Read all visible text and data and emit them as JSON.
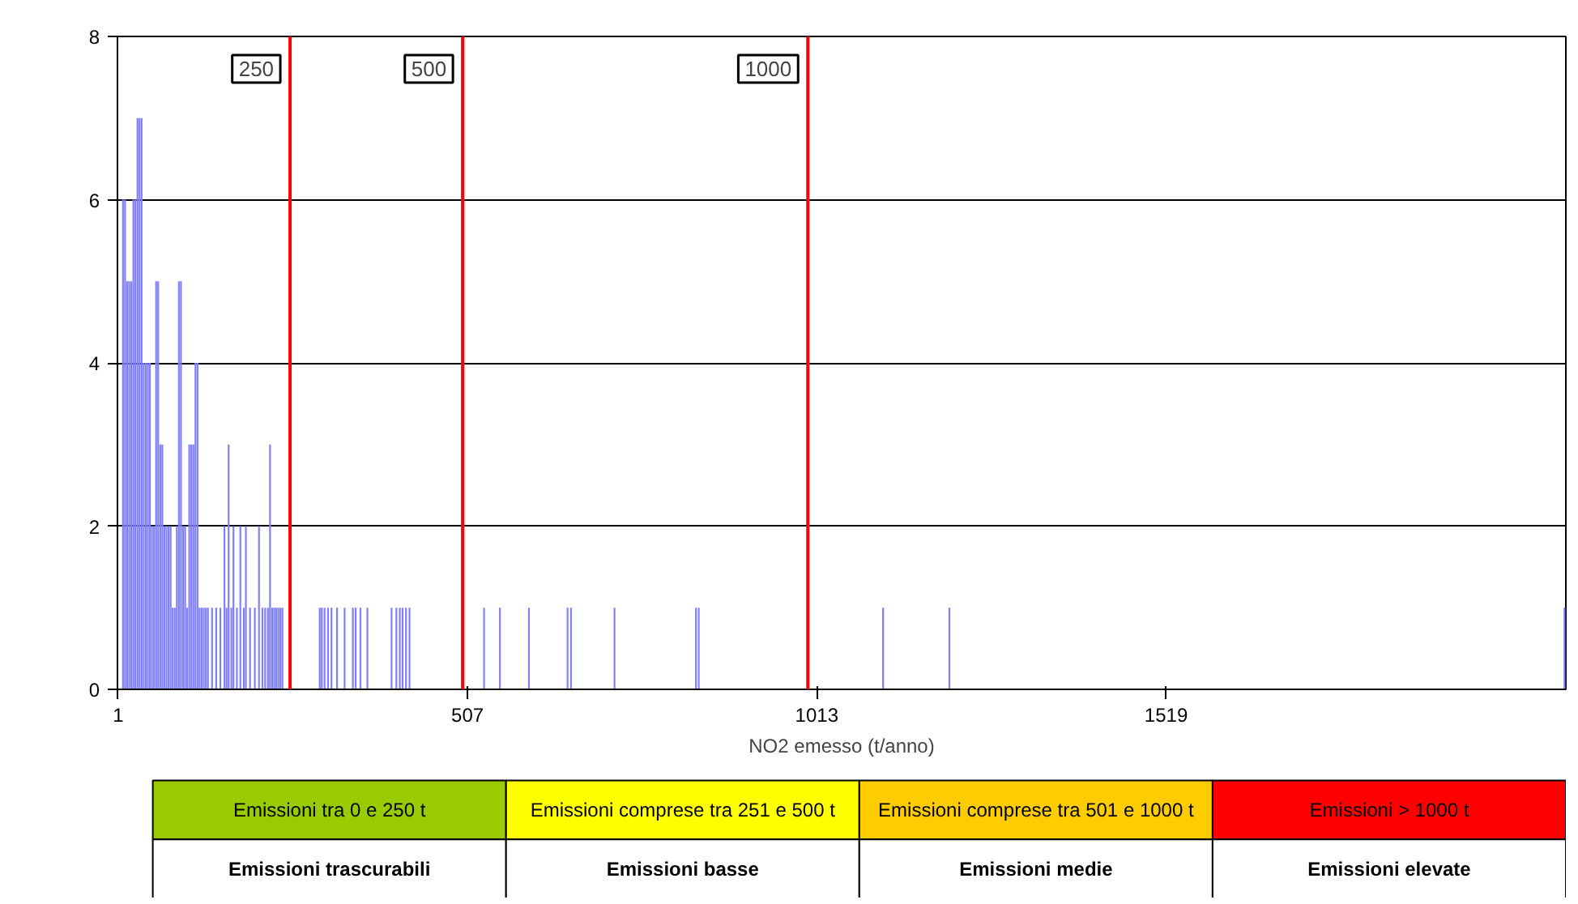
{
  "chart_data": [
    {
      "type": "bar",
      "xlabel": "NO2 emesso (t/anno)",
      "color": "#8080ff",
      "x": [
        8,
        11,
        14,
        17,
        20,
        23,
        26,
        29,
        32,
        35,
        38,
        41,
        44,
        47,
        50,
        53,
        56,
        59,
        62,
        65,
        68,
        71,
        74,
        77,
        80,
        83,
        86,
        89,
        92,
        95,
        98,
        101,
        104,
        107,
        110,
        113,
        116,
        119,
        122,
        125,
        128,
        131,
        137,
        143,
        149,
        155,
        158,
        161,
        165,
        168,
        173,
        178,
        183,
        186,
        192,
        199,
        205,
        210,
        214,
        218,
        221,
        224,
        227,
        230,
        233,
        236,
        239,
        293,
        296,
        300,
        305,
        310,
        318,
        329,
        341,
        345,
        352,
        362,
        397,
        404,
        409,
        413,
        418,
        423,
        531,
        554,
        596,
        652,
        657,
        720,
        838,
        842,
        1109,
        1205,
        2096
      ],
      "values": [
        6,
        6,
        5,
        5,
        5,
        6,
        6,
        7,
        7,
        7,
        4,
        4,
        4,
        4,
        2,
        2,
        5,
        5,
        3,
        3,
        2,
        2,
        2,
        2,
        1,
        1,
        2,
        5,
        5,
        2,
        2,
        1,
        3,
        3,
        3,
        4,
        4,
        1,
        1,
        1,
        1,
        1,
        1,
        1,
        1,
        2,
        1,
        3,
        1,
        2,
        1,
        2,
        1,
        2,
        1,
        1,
        2,
        1,
        1,
        1,
        3,
        1,
        1,
        1,
        1,
        1,
        1,
        1,
        1,
        1,
        1,
        1,
        1,
        1,
        1,
        1,
        1,
        1,
        1,
        1,
        1,
        1,
        1,
        1,
        1,
        1,
        1,
        1,
        1,
        1,
        1,
        1,
        1,
        1,
        1
      ],
      "xlim": [
        0,
        2098
      ],
      "xticks": [
        1,
        507,
        1013,
        1519
      ],
      "ylim": [
        0,
        8
      ],
      "yticks": [
        0,
        2,
        4,
        6,
        8
      ],
      "grid": "y",
      "ref_lines": [
        {
          "axis": "x",
          "value": 250,
          "label": "250",
          "color": "#ff0000"
        },
        {
          "axis": "x",
          "value": 500,
          "label": "500",
          "color": "#ff0000"
        },
        {
          "axis": "x",
          "value": 1000,
          "label": "1000",
          "color": "#ff0000"
        }
      ]
    },
    {
      "type": "other",
      "categories": [
        "Emissioni tra 0 e 250 t",
        "Emissioni comprese tra 251 e 500 t",
        "Emissioni comprese tra 501 e 1000 t",
        "Emissioni > 1000 t"
      ],
      "colors": [
        "#99cc00",
        "#ffff00",
        "#ffcc00",
        "#ff0000"
      ],
      "annotations": [
        "Emissioni trascurabili",
        "Emissioni basse",
        "Emissioni medie",
        "Emissioni elevate"
      ]
    }
  ]
}
